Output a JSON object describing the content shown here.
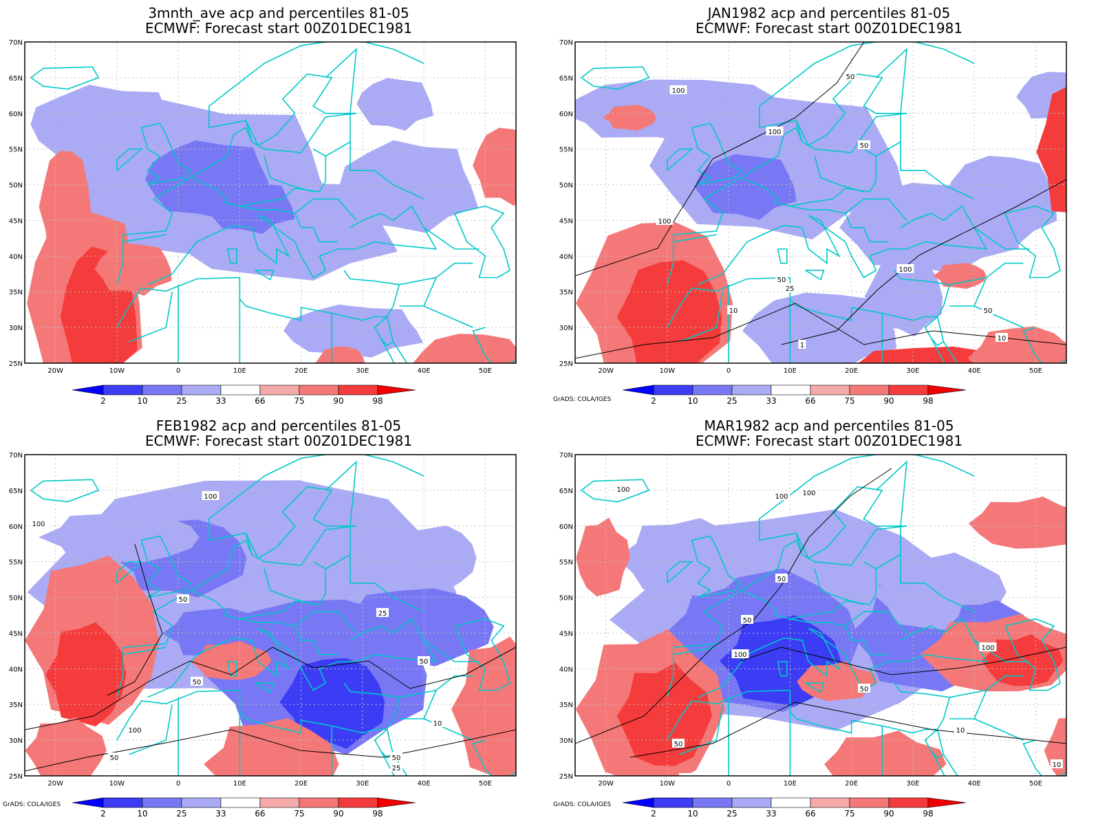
{
  "panels": [
    {
      "title_line1": "3mnth_ave acp and percentiles 81-05",
      "title_line2": "ECMWF: Forecast start 00Z01DEC1981",
      "credit": ""
    },
    {
      "title_line1": "JAN1982 acp and percentiles 81-05",
      "title_line2": "ECMWF: Forecast start 00Z01DEC1981",
      "credit": "GrADS: COLA/IGES"
    },
    {
      "title_line1": "FEB1982 acp and percentiles 81-05",
      "title_line2": "ECMWF: Forecast start 00Z01DEC1981",
      "credit": "GrADS: COLA/IGES"
    },
    {
      "title_line1": "MAR1982 acp and percentiles 81-05",
      "title_line2": "ECMWF: Forecast start 00Z01DEC1981",
      "credit": "GrADS: COLA/IGES"
    }
  ],
  "lat_labels": [
    "70N",
    "65N",
    "60N",
    "55N",
    "50N",
    "45N",
    "40N",
    "35N",
    "30N",
    "25N"
  ],
  "lon_labels": [
    "20W",
    "10W",
    "0",
    "10E",
    "20E",
    "30E",
    "40E",
    "50E"
  ],
  "colorbar": {
    "labels": [
      "2",
      "10",
      "25",
      "33",
      "66",
      "75",
      "90",
      "98"
    ],
    "colors": [
      "#0000ff",
      "#3c3cf5",
      "#7878f5",
      "#aaaaf5",
      "#ffffff",
      "#f5aaaa",
      "#f57878",
      "#f53c3c",
      "#f00000"
    ]
  },
  "contour_labels": [
    "1",
    "10",
    "25",
    "50",
    "100"
  ],
  "colors": {
    "coastline": "#00c8c8",
    "contour": "#000000",
    "frame": "#000000",
    "grid": "#c0c0c0"
  }
}
